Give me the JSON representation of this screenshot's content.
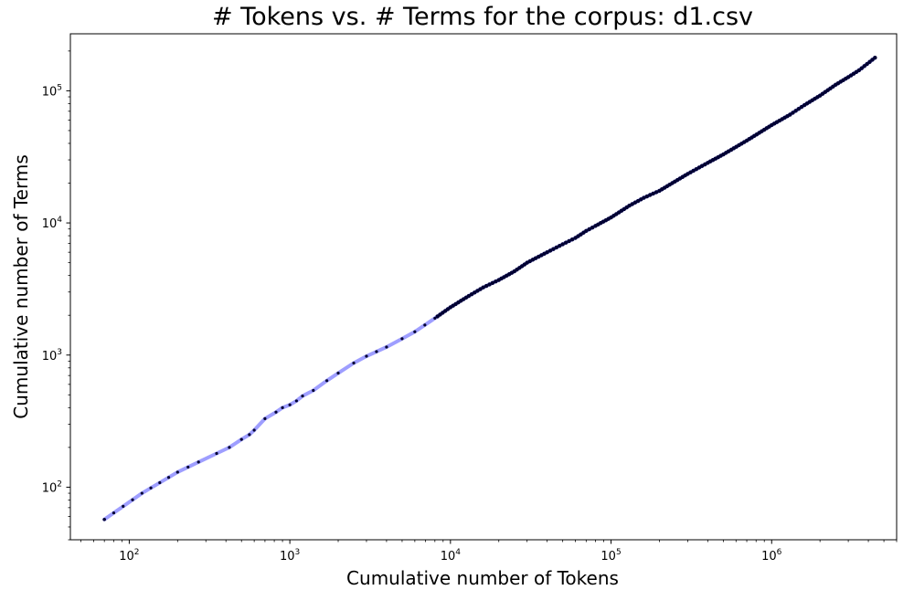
{
  "chart_data": {
    "type": "line",
    "title": "# Tokens vs. # Terms for the corpus: d1.csv",
    "xlabel": "Cumulative number of Tokens",
    "ylabel": "Cumulative number of Terms",
    "xscale": "log",
    "yscale": "log",
    "xlim": [
      43,
      6000000
    ],
    "ylim": [
      40,
      270000
    ],
    "grid": false,
    "legend": "none",
    "x_ticks": [
      {
        "value": 100,
        "base": "10",
        "exp": "2"
      },
      {
        "value": 1000,
        "base": "10",
        "exp": "3"
      },
      {
        "value": 10000,
        "base": "10",
        "exp": "4"
      },
      {
        "value": 100000,
        "base": "10",
        "exp": "5"
      },
      {
        "value": 1000000,
        "base": "10",
        "exp": "6"
      }
    ],
    "y_ticks": [
      {
        "value": 100,
        "base": "10",
        "exp": "2"
      },
      {
        "value": 1000,
        "base": "10",
        "exp": "3"
      },
      {
        "value": 10000,
        "base": "10",
        "exp": "4"
      },
      {
        "value": 100000,
        "base": "10",
        "exp": "5"
      }
    ],
    "colors": {
      "line": "#9999ff",
      "points": "#000033"
    },
    "series": [
      {
        "x": [
          70,
          120,
          200,
          270,
          350,
          420,
          500,
          560,
          600,
          700,
          820,
          900,
          1000,
          1100,
          1200,
          1400,
          1700,
          2000,
          2500,
          3000,
          4000,
          5000,
          6000,
          8000,
          10000,
          13000,
          16000,
          20000,
          25000,
          30000,
          40000,
          50000,
          60000,
          70000,
          80000,
          100000,
          130000,
          160000,
          200000,
          300000,
          400000,
          500000,
          700000,
          1000000,
          1300000,
          1600000,
          2000000,
          2500000,
          3000000,
          3500000,
          4400000
        ],
        "y": [
          57,
          90,
          130,
          155,
          180,
          200,
          230,
          250,
          270,
          330,
          370,
          400,
          420,
          450,
          490,
          540,
          640,
          730,
          870,
          980,
          1150,
          1330,
          1500,
          1900,
          2300,
          2800,
          3250,
          3700,
          4300,
          5000,
          6000,
          6900,
          7700,
          8700,
          9500,
          11000,
          13500,
          15500,
          17500,
          23500,
          28500,
          33000,
          42000,
          55000,
          66000,
          78000,
          92000,
          111000,
          127000,
          143000,
          178000
        ]
      }
    ]
  }
}
